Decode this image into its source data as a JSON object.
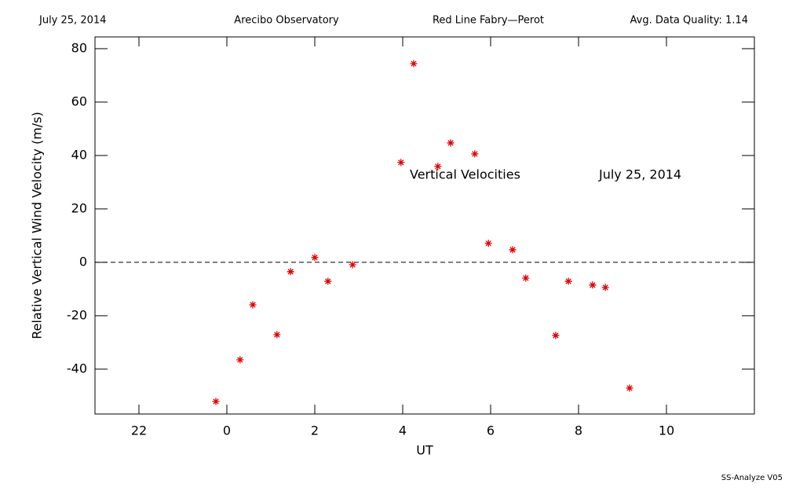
{
  "chart_data": {
    "type": "scatter",
    "header": [
      "July 25, 2014",
      "Arecibo Observatory",
      "Red Line Fabry—Perot",
      "Avg. Data Quality: 1.14"
    ],
    "annotations": [
      "Vertical Velocities",
      "July 25, 2014"
    ],
    "footer": "SS-Analyze V05",
    "xlabel": "UT",
    "ylabel": "Relative Vertical Wind Velocity (m/s)",
    "xlim": [
      -3,
      12
    ],
    "ylim": [
      -56.8,
      84.4
    ],
    "xticks": [
      {
        "value": -2,
        "label": "22"
      },
      0,
      2,
      4,
      6,
      8,
      10
    ],
    "yticks": [
      -40,
      -20,
      0,
      20,
      40,
      60,
      80
    ],
    "hline": 0,
    "color": "#e00000",
    "x": [
      -0.25,
      0.3,
      0.59,
      1.14,
      1.45,
      2.0,
      2.3,
      2.86,
      3.96,
      4.25,
      4.8,
      5.09,
      5.64,
      5.95,
      6.5,
      6.8,
      7.48,
      7.77,
      8.32,
      8.61,
      9.16
    ],
    "values": [
      -52.1,
      -36.5,
      -15.9,
      -27.1,
      -3.5,
      1.8,
      -7.1,
      -0.9,
      37.4,
      74.4,
      35.9,
      44.7,
      40.6,
      7.1,
      4.7,
      -5.9,
      -27.4,
      -7.1,
      -8.5,
      -9.4,
      -47.1
    ]
  }
}
